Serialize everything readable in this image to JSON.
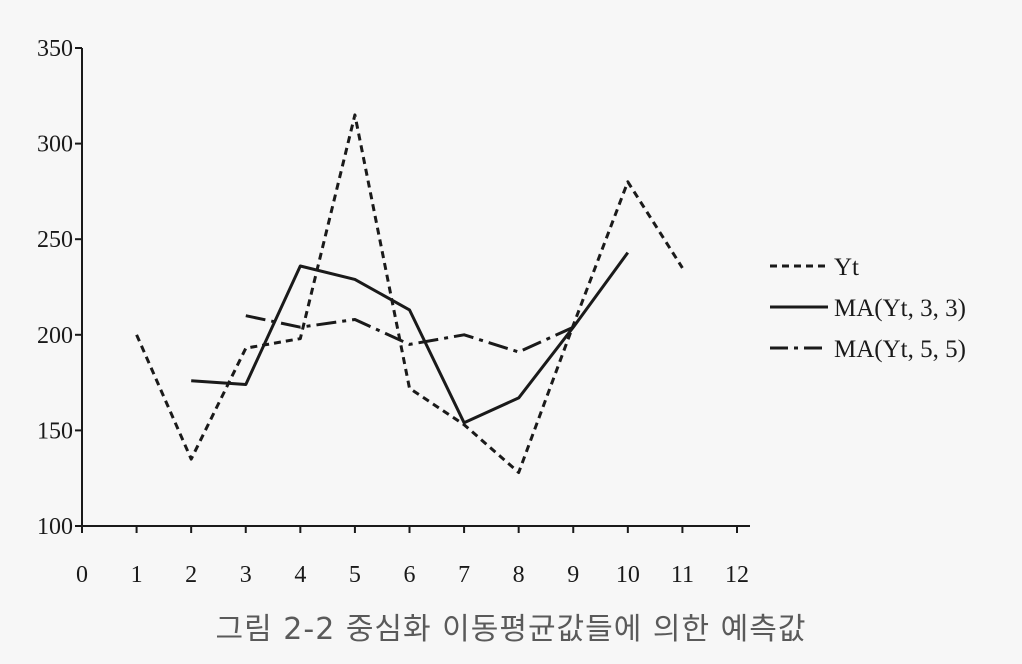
{
  "chart_data": {
    "type": "line",
    "x": [
      0,
      1,
      2,
      3,
      4,
      5,
      6,
      7,
      8,
      9,
      10,
      11,
      12
    ],
    "xlim": [
      0,
      12
    ],
    "ylim": [
      100,
      350
    ],
    "xticks": [
      "0",
      "1",
      "2",
      "3",
      "4",
      "5",
      "6",
      "7",
      "8",
      "9",
      "10",
      "11",
      "12"
    ],
    "yticks": [
      "100",
      "150",
      "200",
      "250",
      "300",
      "350"
    ],
    "grid": false,
    "legend_position": "right",
    "series": [
      {
        "name": "Yt",
        "style": "dashed",
        "points": [
          [
            1,
            200
          ],
          [
            2,
            135
          ],
          [
            3,
            193
          ],
          [
            4,
            198
          ],
          [
            5,
            315
          ],
          [
            6,
            172
          ],
          [
            7,
            153
          ],
          [
            8,
            128
          ],
          [
            9,
            205
          ],
          [
            10,
            280
          ],
          [
            11,
            235
          ]
        ]
      },
      {
        "name": "MA(Yt, 3, 3)",
        "style": "solid",
        "points": [
          [
            2,
            176
          ],
          [
            3,
            174
          ],
          [
            4,
            236
          ],
          [
            5,
            229
          ],
          [
            6,
            213
          ],
          [
            7,
            154
          ],
          [
            8,
            167
          ],
          [
            9,
            204
          ],
          [
            10,
            243
          ]
        ]
      },
      {
        "name": "MA(Yt, 5, 5)",
        "style": "dashdot",
        "points": [
          [
            3,
            210
          ],
          [
            4,
            204
          ],
          [
            5,
            208
          ],
          [
            6,
            195
          ],
          [
            7,
            200
          ],
          [
            8,
            191
          ],
          [
            9,
            204
          ]
        ]
      }
    ]
  },
  "caption": "그림 2-2  중심화 이동평균값들에 의한 예측값",
  "colors": {
    "line": "#1a1a1a",
    "caption": "#5a5a5a",
    "background": "#f7f7f7"
  }
}
